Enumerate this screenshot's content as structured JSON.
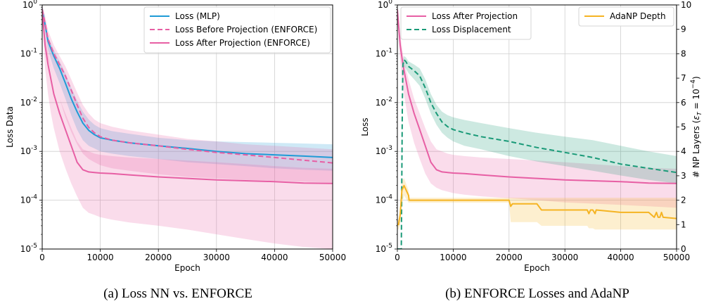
{
  "chart_data": [
    {
      "type": "line",
      "caption": "(a) Loss NN vs. ENFORCE",
      "xlabel": "Epoch",
      "ylabel": "Loss Data",
      "x_ticks": [
        "0",
        "10000",
        "20000",
        "30000",
        "40000",
        "50000"
      ],
      "y_ticks": [
        "10^{-5}",
        "10^{-4}",
        "10^{-3}",
        "10^{-2}",
        "10^{-1}",
        "10^{0}"
      ],
      "xlim": [
        0,
        50000
      ],
      "ylim": [
        1e-05,
        1
      ],
      "yscale": "log",
      "grid": true,
      "legend_position": "top-right",
      "series": [
        {
          "name": "Loss (MLP)",
          "color": "#1f9bd6",
          "style": "solid",
          "x": [
            0,
            500,
            1000,
            2000,
            3000,
            4000,
            5000,
            6000,
            7000,
            8000,
            9000,
            10000,
            12000,
            15000,
            20000,
            25000,
            30000,
            35000,
            40000,
            45000,
            50000
          ],
          "y": [
            0.8,
            0.4,
            0.18,
            0.09,
            0.05,
            0.025,
            0.012,
            0.0065,
            0.0038,
            0.0027,
            0.0022,
            0.0019,
            0.0017,
            0.0015,
            0.0013,
            0.00115,
            0.001,
            0.0009,
            0.00085,
            0.0008,
            0.00075
          ],
          "band_low": [
            0.6,
            0.3,
            0.12,
            0.05,
            0.025,
            0.012,
            0.0055,
            0.0028,
            0.0017,
            0.0013,
            0.00115,
            0.001,
            0.0009,
            0.0008,
            0.0007,
            0.0006,
            0.00055,
            0.0005,
            0.00045,
            0.00042,
            0.0004
          ],
          "band_high": [
            1,
            0.5,
            0.22,
            0.12,
            0.07,
            0.04,
            0.02,
            0.011,
            0.0065,
            0.0045,
            0.0035,
            0.003,
            0.0026,
            0.0023,
            0.0019,
            0.0017,
            0.0016,
            0.00155,
            0.0015,
            0.00145,
            0.0014
          ]
        },
        {
          "name": "Loss Before Projection (ENFORCE)",
          "color": "#e75fa4",
          "style": "dashed",
          "x": [
            0,
            500,
            1000,
            2000,
            3000,
            4000,
            5000,
            6000,
            7000,
            8000,
            9000,
            10000,
            12000,
            15000,
            20000,
            25000,
            30000,
            35000,
            40000,
            45000,
            50000
          ],
          "y": [
            0.8,
            0.42,
            0.2,
            0.1,
            0.06,
            0.035,
            0.018,
            0.009,
            0.0048,
            0.0031,
            0.0024,
            0.002,
            0.0017,
            0.0015,
            0.0013,
            0.0011,
            0.00095,
            0.00085,
            0.00075,
            0.00066,
            0.00058
          ],
          "band_low": [
            0.5,
            0.2,
            0.08,
            0.03,
            0.012,
            0.005,
            0.0025,
            0.0014,
            0.0009,
            0.0007,
            0.0006,
            0.00052,
            0.00045,
            0.0004,
            0.00034,
            0.0003,
            0.00028,
            0.00026,
            0.00025,
            0.00024,
            0.00023
          ],
          "band_high": [
            1,
            0.6,
            0.3,
            0.15,
            0.09,
            0.055,
            0.03,
            0.016,
            0.009,
            0.006,
            0.0045,
            0.0038,
            0.0032,
            0.0027,
            0.0022,
            0.0018,
            0.0016,
            0.0014,
            0.0013,
            0.0012,
            0.0011
          ]
        },
        {
          "name": "Loss After Projection (ENFORCE)",
          "color": "#e75fa4",
          "style": "solid",
          "x": [
            0,
            500,
            1000,
            1500,
            2000,
            3000,
            4000,
            5000,
            6000,
            7000,
            8000,
            9000,
            10000,
            12000,
            15000,
            20000,
            25000,
            30000,
            35000,
            40000,
            45000,
            50000
          ],
          "y": [
            0.8,
            0.15,
            0.06,
            0.03,
            0.015,
            0.006,
            0.0028,
            0.0013,
            0.0006,
            0.00042,
            0.00038,
            0.00037,
            0.00036,
            0.00035,
            0.00033,
            0.0003,
            0.00028,
            0.00026,
            0.00025,
            0.00024,
            0.000225,
            0.00022
          ],
          "band_low": [
            0.5,
            0.05,
            0.015,
            0.006,
            0.003,
            0.001,
            0.00045,
            0.00022,
            0.00012,
            7e-05,
            5.5e-05,
            5e-05,
            4.5e-05,
            4e-05,
            3.5e-05,
            3e-05,
            2.5e-05,
            2e-05,
            1.6e-05,
            1.3e-05,
            1.1e-05,
            1e-05
          ],
          "band_high": [
            1,
            0.25,
            0.1,
            0.05,
            0.03,
            0.012,
            0.006,
            0.003,
            0.0016,
            0.0011,
            0.001,
            0.0009,
            0.00085,
            0.0008,
            0.00075,
            0.0007,
            0.00065,
            0.0006,
            0.00055,
            0.0005,
            0.00046,
            0.00044
          ]
        }
      ]
    },
    {
      "type": "line",
      "caption": "(b) ENFORCE Losses and AdaNP",
      "xlabel": "Epoch",
      "ylabel": "Loss",
      "ylabel_right": "# NP Layers (ε_T = 10^{-4})",
      "x_ticks": [
        "0",
        "10000",
        "20000",
        "30000",
        "40000",
        "50000"
      ],
      "y_ticks": [
        "10^{-5}",
        "10^{-4}",
        "10^{-3}",
        "10^{-2}",
        "10^{-1}",
        "10^{0}"
      ],
      "y_ticks_right": [
        "0",
        "1",
        "2",
        "3",
        "4",
        "5",
        "6",
        "7",
        "8",
        "9",
        "10"
      ],
      "xlim": [
        0,
        50000
      ],
      "ylim": [
        1e-05,
        1
      ],
      "ylim_right": [
        0,
        10
      ],
      "yscale": "log",
      "grid": true,
      "legend_position": "top-left and top-right",
      "series": [
        {
          "name": "Loss After Projection",
          "color": "#e75fa4",
          "style": "solid",
          "x": [
            0,
            500,
            1000,
            1500,
            2000,
            3000,
            4000,
            5000,
            6000,
            7000,
            8000,
            9000,
            10000,
            12000,
            15000,
            20000,
            25000,
            30000,
            35000,
            40000,
            45000,
            50000
          ],
          "y": [
            0.8,
            0.15,
            0.06,
            0.03,
            0.015,
            0.006,
            0.0028,
            0.0013,
            0.0006,
            0.00042,
            0.00038,
            0.00037,
            0.00036,
            0.00035,
            0.00033,
            0.0003,
            0.00028,
            0.00026,
            0.00025,
            0.00024,
            0.000225,
            0.00022
          ],
          "band_low": [
            0.5,
            0.07,
            0.02,
            0.009,
            0.004,
            0.0015,
            0.0007,
            0.00035,
            0.00022,
            0.00018,
            0.00016,
            0.00015,
            0.00014,
            0.00013,
            0.00012,
            0.00011,
            0.0001,
            9e-05,
            8.5e-05,
            8e-05,
            7.5e-05,
            7e-05
          ],
          "band_high": [
            1,
            0.25,
            0.1,
            0.05,
            0.03,
            0.012,
            0.006,
            0.003,
            0.0016,
            0.0011,
            0.001,
            0.0009,
            0.00085,
            0.0008,
            0.00075,
            0.0007,
            0.00065,
            0.0006,
            0.00055,
            0.0005,
            0.00046,
            0.00044
          ]
        },
        {
          "name": "Loss Displacement",
          "color": "#1a9a78",
          "style": "dashed",
          "x": [
            0,
            700,
            900,
            1000,
            1200,
            1500,
            2000,
            3000,
            4000,
            5000,
            6000,
            7000,
            8000,
            9000,
            10000,
            12000,
            15000,
            20000,
            25000,
            30000,
            35000,
            40000,
            45000,
            50000
          ],
          "y": [
            1e-05,
            1e-05,
            0.01,
            0.06,
            0.075,
            0.07,
            0.055,
            0.045,
            0.035,
            0.02,
            0.01,
            0.006,
            0.004,
            0.0032,
            0.0028,
            0.0024,
            0.002,
            0.0016,
            0.0012,
            0.00095,
            0.00075,
            0.00055,
            0.00045,
            0.00037
          ],
          "band_low": [
            1e-05,
            1e-05,
            0.008,
            0.045,
            0.055,
            0.05,
            0.04,
            0.03,
            0.022,
            0.012,
            0.006,
            0.0035,
            0.0024,
            0.0019,
            0.0016,
            0.0013,
            0.0011,
            0.0008,
            0.00062,
            0.0005,
            0.0004,
            0.00032,
            0.00026,
            0.00022
          ],
          "band_high": [
            1e-05,
            1e-05,
            0.012,
            0.075,
            0.09,
            0.085,
            0.07,
            0.06,
            0.05,
            0.03,
            0.015,
            0.009,
            0.0065,
            0.0055,
            0.005,
            0.0044,
            0.0038,
            0.003,
            0.0024,
            0.002,
            0.0017,
            0.0013,
            0.001,
            0.0008
          ]
        },
        {
          "name": "AdaNP Depth",
          "axis": "right",
          "color": "#f5b423",
          "style": "solid",
          "x": [
            0,
            200,
            500,
            800,
            1200,
            2000,
            2100,
            4000,
            10000,
            15000,
            20000,
            20300,
            20600,
            25000,
            25800,
            30000,
            34000,
            34300,
            34600,
            35000,
            35400,
            35600,
            40000,
            45000,
            46000,
            46400,
            46700,
            47000,
            47300,
            47600,
            50000
          ],
          "y": [
            1,
            1,
            1.4,
            2.4,
            2.6,
            2.2,
            2,
            2,
            2,
            2,
            2,
            1.75,
            1.85,
            1.85,
            1.6,
            1.6,
            1.6,
            1.45,
            1.6,
            1.6,
            1.45,
            1.6,
            1.5,
            1.5,
            1.3,
            1.5,
            1.3,
            1.3,
            1.5,
            1.3,
            1.25
          ],
          "band_low": [
            0.8,
            0.8,
            1,
            1.8,
            2.2,
            1.9,
            1.9,
            1.9,
            1.9,
            1.9,
            1.9,
            1.1,
            1.1,
            1.1,
            0.95,
            0.95,
            0.95,
            0.85,
            0.85,
            0.85,
            0.8,
            0.8,
            0.8,
            0.8,
            0.8,
            0.8,
            0.8,
            0.8,
            0.8,
            0.8,
            0.8
          ],
          "band_high": [
            1.2,
            1.2,
            1.6,
            2.8,
            2.9,
            2.4,
            2.1,
            2.1,
            2.1,
            2.1,
            2.1,
            2.1,
            2.1,
            2.1,
            2.1,
            2.1,
            2.1,
            2.1,
            2.1,
            2.1,
            2.1,
            2.1,
            2.1,
            2.1,
            2.1,
            2.1,
            2.1,
            2.1,
            2.1,
            2.1,
            2.1
          ]
        }
      ]
    }
  ]
}
